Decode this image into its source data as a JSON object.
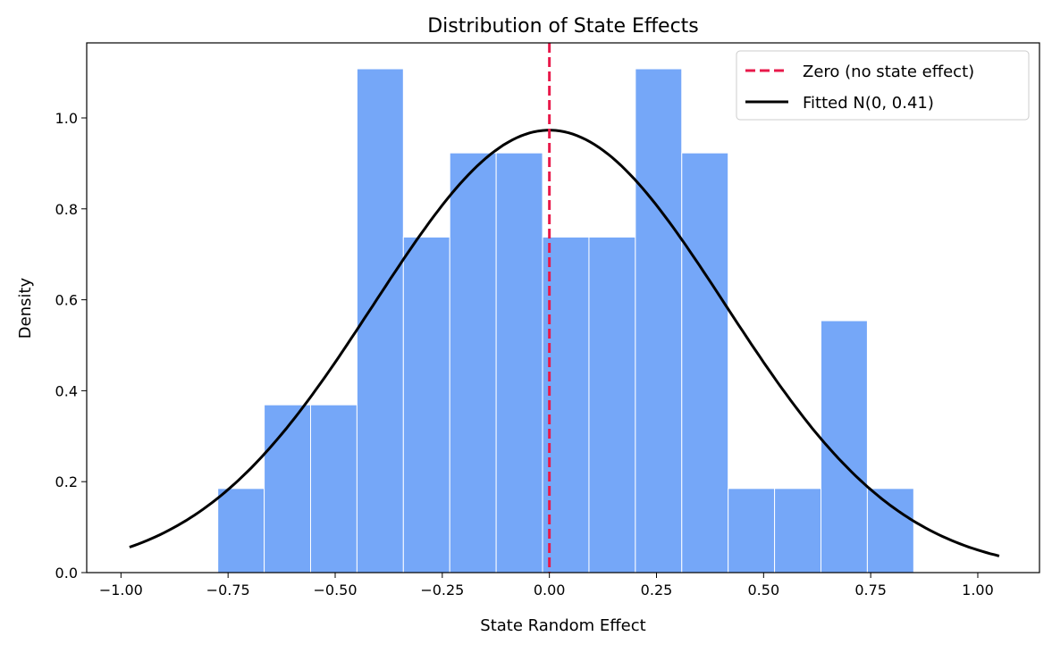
{
  "chart_data": {
    "type": "histogram",
    "title": "Distribution of State Effects",
    "xlabel": "State Random Effect",
    "ylabel": "Density",
    "xlim": [
      -1.08,
      1.144
    ],
    "ylim": [
      0,
      1.165
    ],
    "xticks": [
      -1.0,
      -0.75,
      -0.5,
      -0.25,
      0.0,
      0.25,
      0.5,
      0.75,
      1.0
    ],
    "xtick_labels": [
      "−1.00",
      "−0.75",
      "−0.50",
      "−0.25",
      "0.00",
      "0.25",
      "0.50",
      "0.75",
      "1.00"
    ],
    "yticks": [
      0.0,
      0.2,
      0.4,
      0.6,
      0.8,
      1.0
    ],
    "ytick_labels": [
      "0.0",
      "0.2",
      "0.4",
      "0.6",
      "0.8",
      "1.0"
    ],
    "grid": false,
    "bins": {
      "edges_start": -0.774,
      "bin_width": 0.1083,
      "values": [
        0.185,
        0.369,
        0.369,
        1.108,
        0.738,
        0.923,
        0.923,
        0.738,
        0.738,
        1.108,
        0.923,
        0.185,
        0.185,
        0.554,
        0.185
      ],
      "color": "#75a7f8",
      "edge_color": "#ffffff"
    },
    "fitted_curve": {
      "name": "Fitted N(0, 0.41)",
      "mean": 0,
      "sd": 0.41,
      "x_range": [
        -0.98,
        1.05
      ],
      "color": "#000000"
    },
    "reference_line": {
      "name": "Zero (no state effect)",
      "x": 0,
      "color": "#e8194a",
      "style": "dashed"
    },
    "legend": {
      "placement": "top-right"
    }
  }
}
